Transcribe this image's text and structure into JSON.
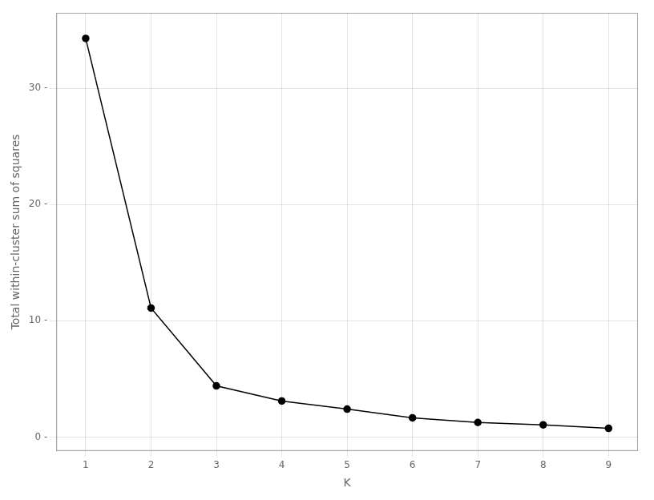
{
  "chart_data": {
    "type": "line",
    "x": [
      1,
      2,
      3,
      4,
      5,
      6,
      7,
      8,
      9
    ],
    "values": [
      34.3,
      11.1,
      4.4,
      3.1,
      2.4,
      1.65,
      1.25,
      1.05,
      0.75
    ],
    "xlabel": "K",
    "ylabel": "Total within-cluster sum of squares",
    "xlim": [
      0.55,
      9.45
    ],
    "ylim": [
      -1.2,
      36.5
    ],
    "xticks": [
      1,
      2,
      3,
      4,
      5,
      6,
      7,
      8,
      9
    ],
    "yticks": [
      {
        "value": 0,
        "label": "0 -"
      },
      {
        "value": 10,
        "label": "10 -"
      },
      {
        "value": 20,
        "label": "20 -"
      },
      {
        "value": 30,
        "label": "30 -"
      }
    ],
    "color": "#000000",
    "marker": "circle",
    "grid": true
  }
}
